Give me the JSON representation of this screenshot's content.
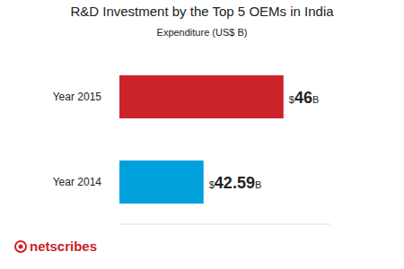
{
  "chart_data": {
    "type": "bar",
    "title": "R&D Investment by the Top 5 OEMs in India",
    "subtitle": "Expenditure (US$ B)",
    "categories": [
      "Year 2015",
      "Year 2014"
    ],
    "values": [
      46,
      42.59
    ],
    "value_labels": [
      "$46B",
      "$42.59B"
    ],
    "colors": [
      "#cc2229",
      "#00a0dc"
    ],
    "xlim": [
      39,
      48
    ],
    "orientation": "horizontal",
    "data_labels": true,
    "tick_labels": "y",
    "grid": false,
    "annotations": [
      "netscribes"
    ]
  }
}
